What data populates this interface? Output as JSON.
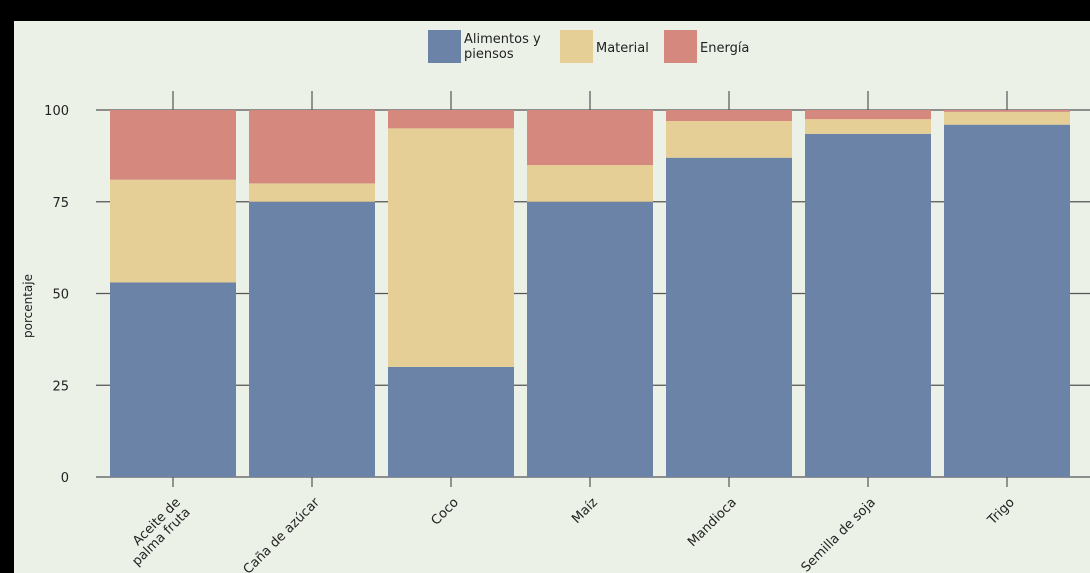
{
  "chart_data": {
    "type": "bar",
    "stacked": true,
    "categories": [
      "Aceite de palma fruta",
      "Caña de azúcar",
      "Coco",
      "Maíz",
      "Mandioca",
      "Semilla de soja",
      "Trigo"
    ],
    "category_lines": [
      [
        "Aceite de",
        "palma fruta"
      ],
      [
        "Caña de azúcar"
      ],
      [
        "Coco"
      ],
      [
        "Maíz"
      ],
      [
        "Mandioca"
      ],
      [
        "Semilla de soja"
      ],
      [
        "Trigo"
      ]
    ],
    "series": [
      {
        "name": "Alimentos y piensos",
        "name_lines": [
          "Alimentos y",
          "piensos"
        ],
        "color": "#6b83a6",
        "values": [
          53,
          75,
          30,
          75,
          87,
          93.5,
          96
        ]
      },
      {
        "name": "Material",
        "name_lines": [
          "Material"
        ],
        "color": "#e6cf96",
        "values": [
          28,
          5,
          65,
          10,
          10,
          4,
          3.5
        ]
      },
      {
        "name": "Energía",
        "name_lines": [
          "Energía"
        ],
        "color": "#d4887e",
        "values": [
          19,
          20,
          5,
          15,
          3,
          2.5,
          0.5
        ]
      }
    ],
    "ylabel": "porcentaje",
    "xlabel": "",
    "ylim": [
      0,
      100
    ],
    "yticks": [
      0,
      25,
      50,
      75,
      100
    ],
    "grid": true,
    "legend_position": "top"
  },
  "colors": {
    "background": "#ecf1e8",
    "frame": "#000000",
    "grid": "#555555"
  }
}
